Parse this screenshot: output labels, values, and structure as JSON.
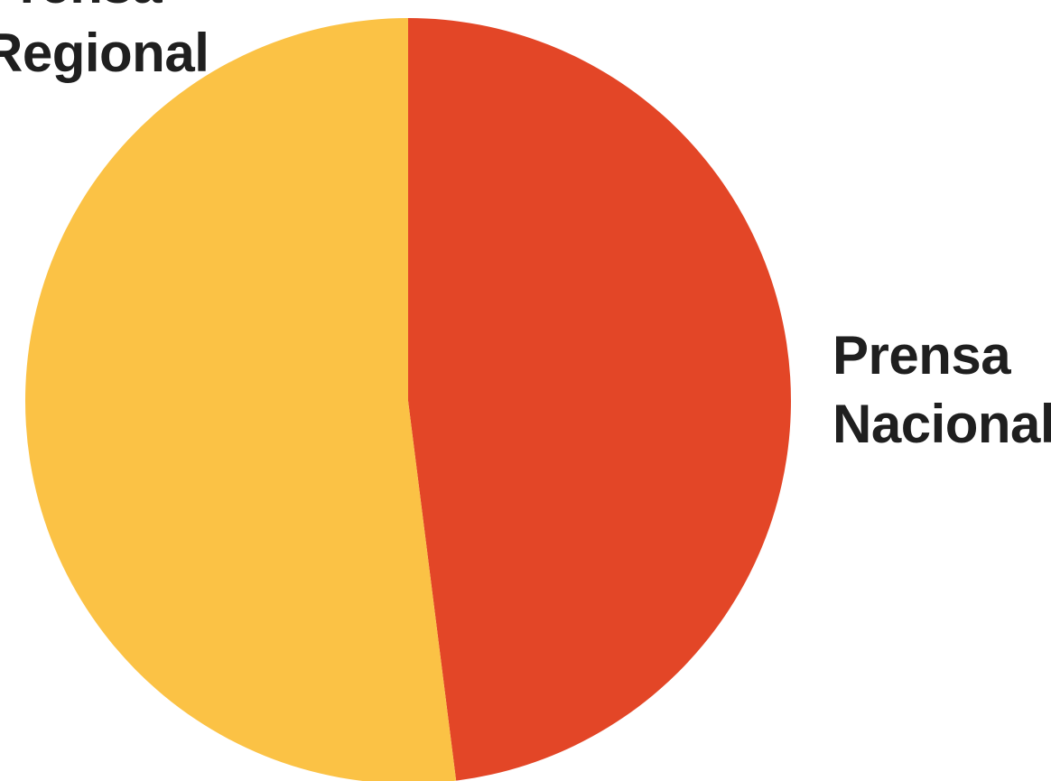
{
  "chart_data": {
    "type": "pie",
    "title": "",
    "slices": [
      {
        "label": "Prensa Nacional",
        "value": 48,
        "color": "#e34627"
      },
      {
        "label": "Prensa Regional",
        "value": 52,
        "color": "#fbc245"
      }
    ],
    "labels": {
      "nacional": "Prensa\nNacional",
      "regional": "Prensa\nRegional"
    }
  }
}
